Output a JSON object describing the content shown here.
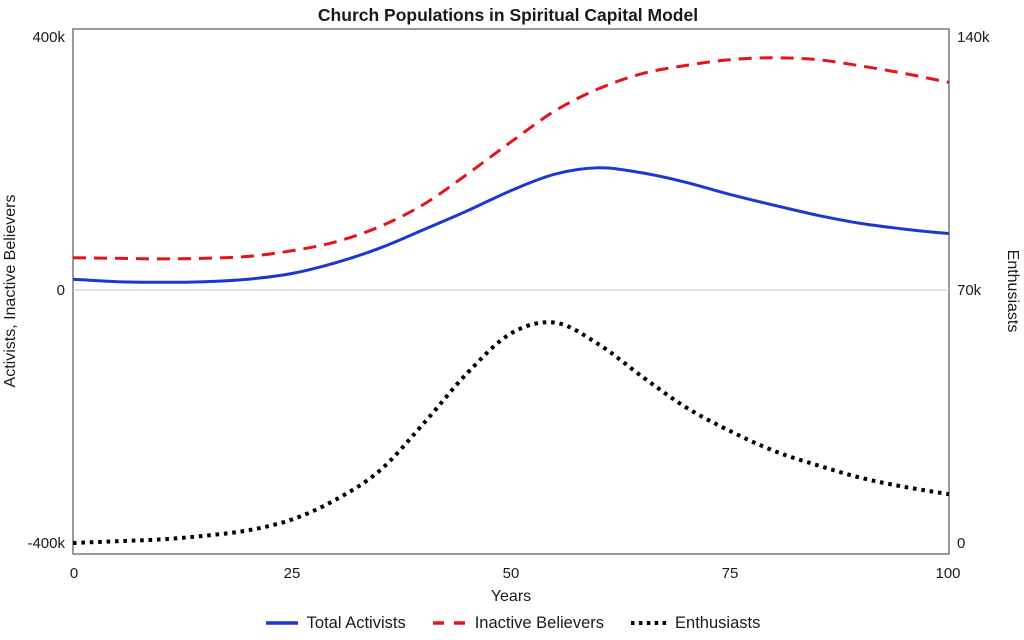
{
  "title": "Church Populations in Spiritual Capital Model",
  "chart_data": {
    "type": "line",
    "title": "Church Populations in Spiritual Capital Model",
    "xlabel": "Years",
    "grid": "zero-line-only",
    "legend_position": "bottom",
    "colors": {
      "total_activists": "#1d38d1",
      "inactive_believers": "#e8121a",
      "enthusiasts": "#000000",
      "zero_line": "#d9d9d9",
      "plot_border": "#808080"
    },
    "xlim": [
      0,
      100
    ],
    "xticks": [
      {
        "value": 0,
        "label": "0"
      },
      {
        "value": 25,
        "label": "25"
      },
      {
        "value": 50,
        "label": "50"
      },
      {
        "value": 75,
        "label": "75"
      },
      {
        "value": 100,
        "label": "100"
      }
    ],
    "yaxis_left": {
      "label": "Activists, Inactive Believers",
      "range": [
        -417500,
        412500
      ],
      "ticks": [
        {
          "value": 400000,
          "label": "400k"
        },
        {
          "value": 0,
          "label": "0"
        },
        {
          "value": -400000,
          "label": "-400k"
        }
      ]
    },
    "yaxis_right": {
      "label": "Enthusiasts",
      "range": [
        -3050,
        142250
      ],
      "ticks": [
        {
          "value": 140000,
          "label": "140k"
        },
        {
          "value": 70000,
          "label": "70k"
        },
        {
          "value": 0,
          "label": "0"
        }
      ]
    },
    "x": [
      0,
      5,
      10,
      15,
      20,
      25,
      30,
      35,
      40,
      45,
      50,
      55,
      60,
      65,
      70,
      75,
      80,
      85,
      90,
      95,
      100
    ],
    "series": [
      {
        "name": "Total Activists",
        "slug": "total-activists",
        "axis": "left",
        "color": "#1d38d1",
        "style": "solid",
        "values": [
          17000,
          13000,
          12000,
          13000,
          17000,
          26000,
          43000,
          66000,
          95000,
          125000,
          157000,
          183000,
          193000,
          185000,
          170000,
          151000,
          134000,
          118000,
          105000,
          96000,
          89000
        ]
      },
      {
        "name": "Inactive Believers",
        "slug": "inactive-believers",
        "axis": "left",
        "color": "#e8121a",
        "style": "dashed",
        "values": [
          51000,
          50000,
          49000,
          50000,
          53000,
          62000,
          76000,
          100000,
          135000,
          183000,
          234000,
          283000,
          318000,
          342000,
          355000,
          364000,
          367000,
          364000,
          354000,
          342000,
          328000
        ]
      },
      {
        "name": "Enthusiasts",
        "slug": "enthusiasts",
        "axis": "right",
        "color": "#000000",
        "style": "dotted",
        "values": [
          0,
          500,
          1000,
          2000,
          3500,
          6500,
          12000,
          20000,
          33000,
          47000,
          58000,
          61000,
          55000,
          46000,
          37500,
          31000,
          25500,
          21500,
          18000,
          15500,
          13500
        ]
      }
    ]
  }
}
